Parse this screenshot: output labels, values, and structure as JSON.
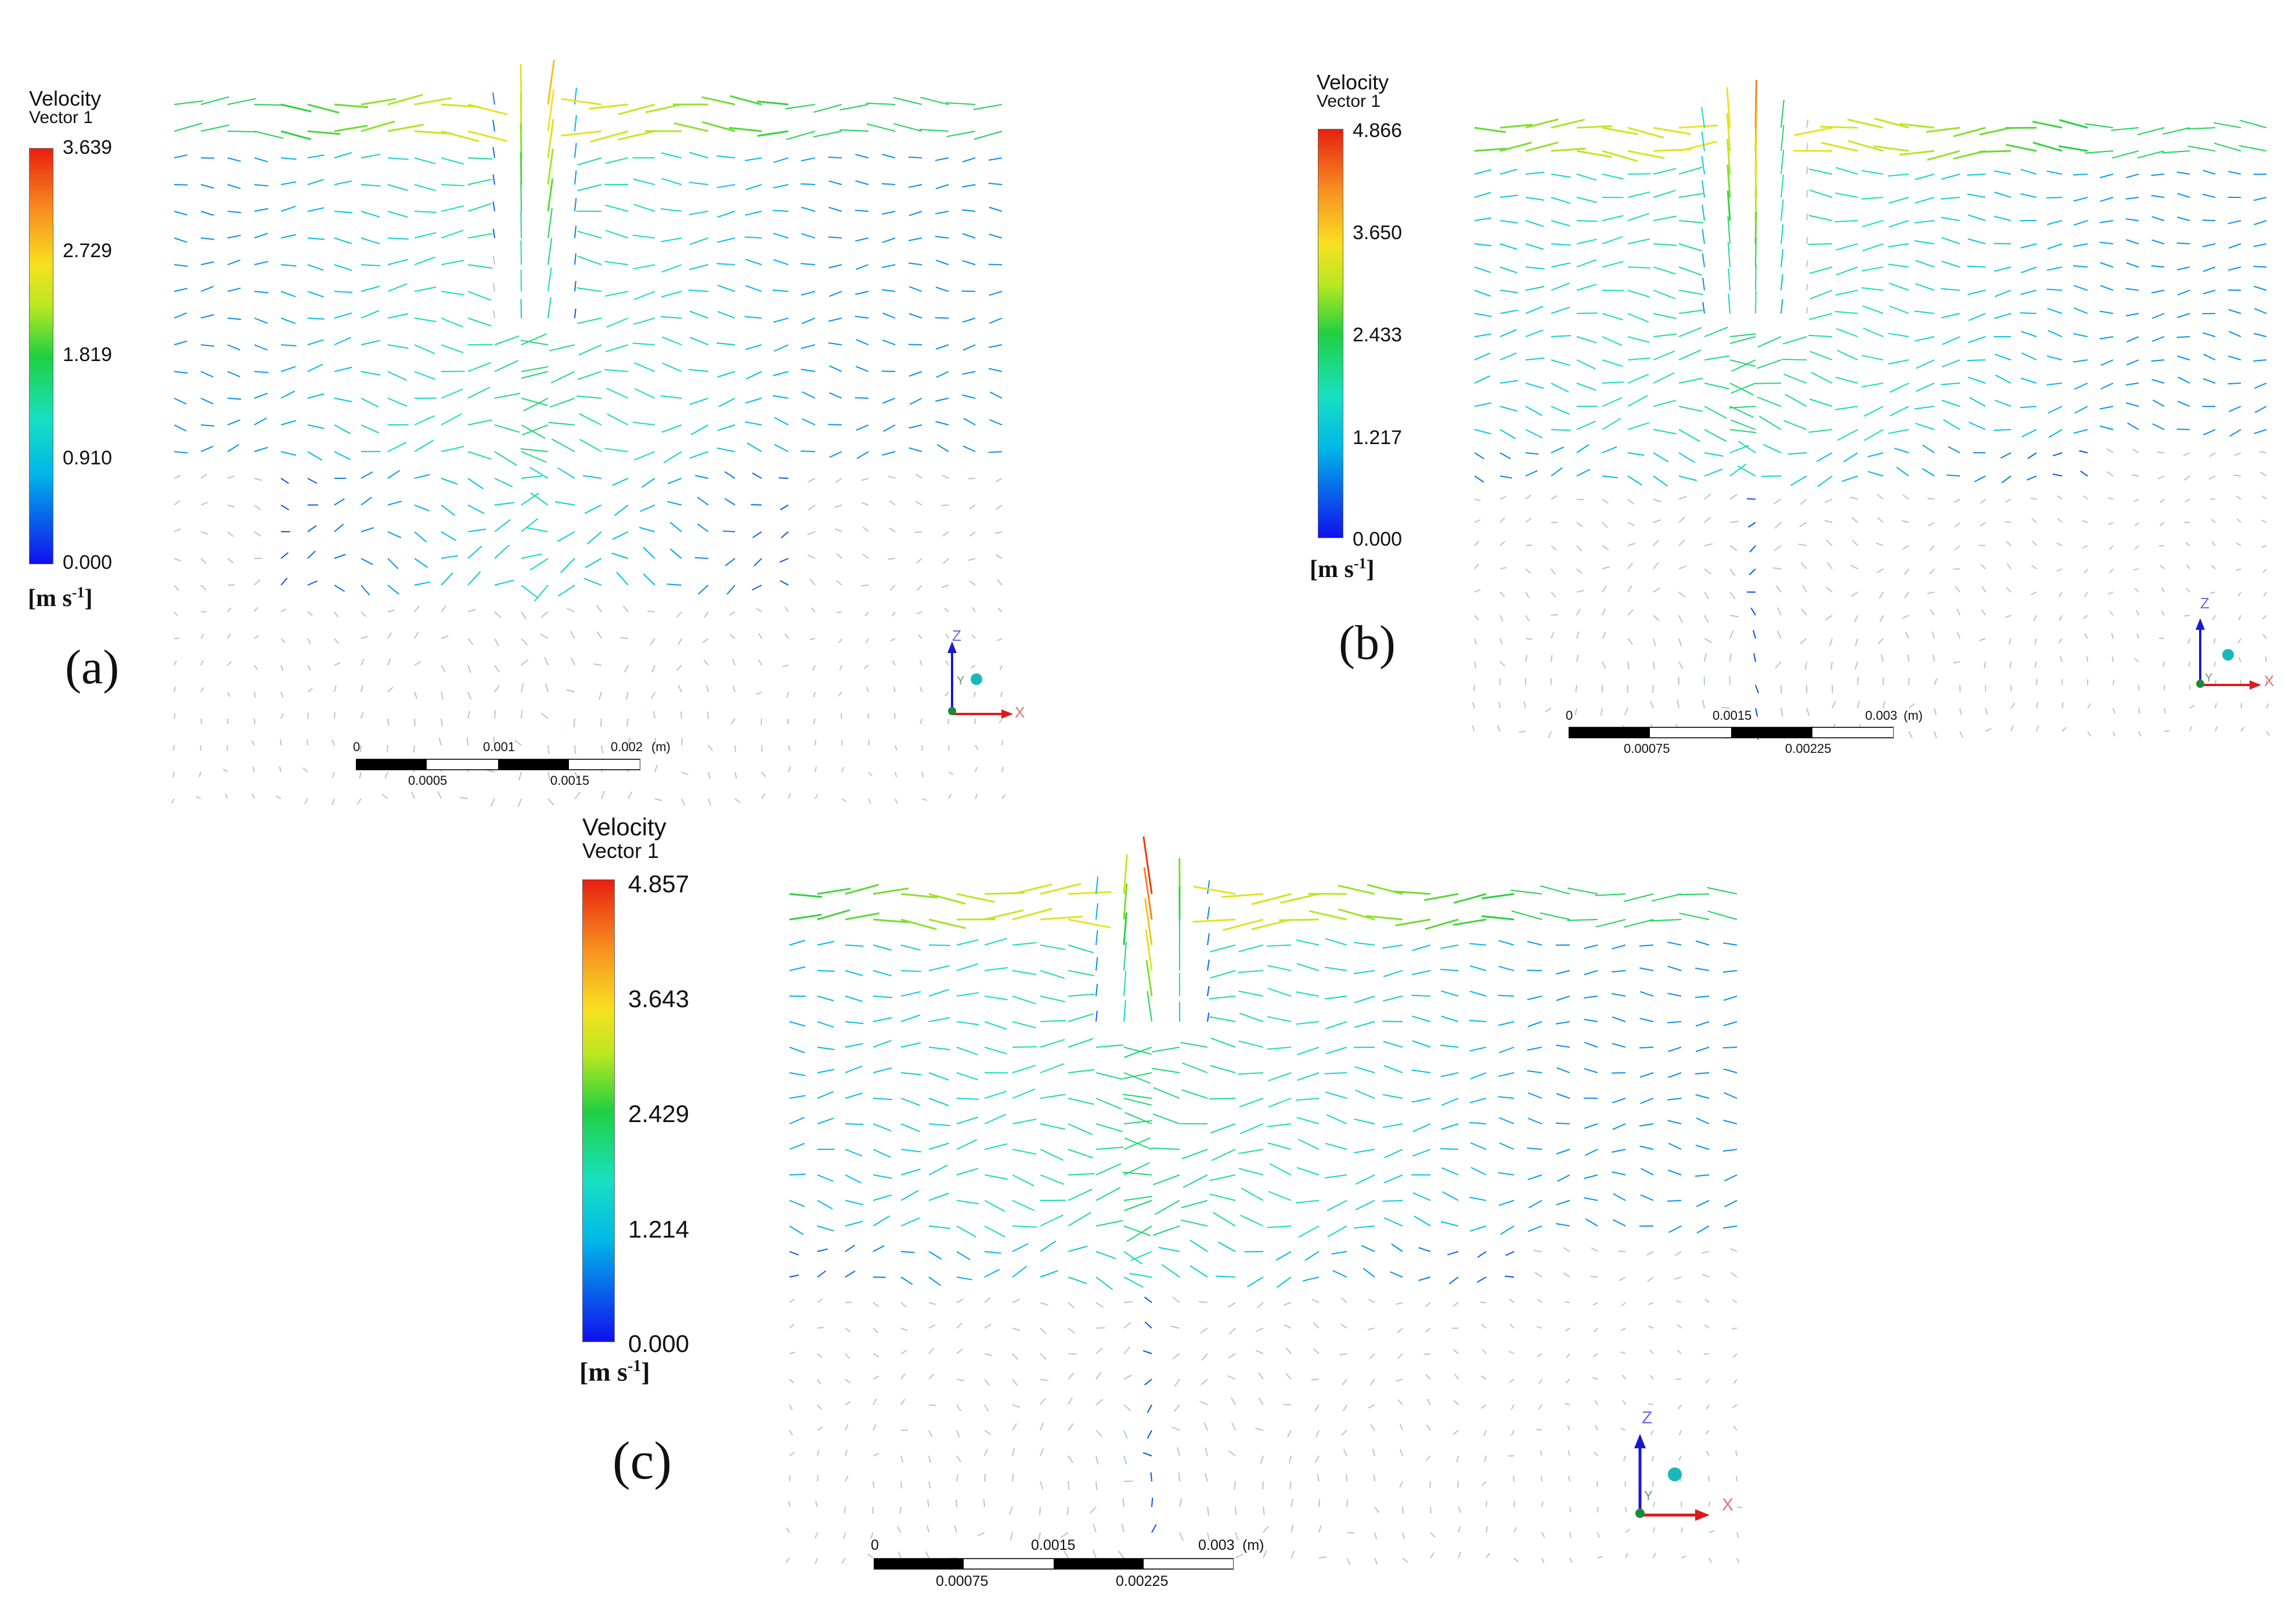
{
  "panels": [
    {
      "id": "a",
      "legend": {
        "title_line1": "Velocity",
        "title_line2": "Vector 1",
        "ticks": [
          "3.639",
          "2.729",
          "1.819",
          "0.910",
          "0.000"
        ],
        "unit": "[m s-1]",
        "unit_base": "[m s",
        "unit_exp": "-1",
        "unit_close": "]"
      },
      "label": "(a)",
      "scale": {
        "top_labels": [
          "0",
          "0.001",
          "0.002",
          "(m)"
        ],
        "bottom_labels": [
          "0.0005",
          "0.0015"
        ]
      },
      "axes": {
        "z": "Z",
        "x": "X",
        "y": "Y"
      }
    },
    {
      "id": "b",
      "legend": {
        "title_line1": "Velocity",
        "title_line2": "Vector 1",
        "ticks": [
          "4.866",
          "3.650",
          "2.433",
          "1.217",
          "0.000"
        ],
        "unit": "[m s-1]",
        "unit_base": "[m s",
        "unit_exp": "-1",
        "unit_close": "]"
      },
      "label": "(b)",
      "scale": {
        "top_labels": [
          "0",
          "0.0015",
          "0.003",
          "(m)"
        ],
        "bottom_labels": [
          "0.00075",
          "0.00225"
        ]
      },
      "axes": {
        "z": "Z",
        "x": "X",
        "y": "Y"
      }
    },
    {
      "id": "c",
      "legend": {
        "title_line1": "Velocity",
        "title_line2": "Vector 1",
        "ticks": [
          "4.857",
          "3.643",
          "2.429",
          "1.214",
          "0.000"
        ],
        "unit": "[m s-1]",
        "unit_base": "[m s",
        "unit_exp": "-1",
        "unit_close": "]"
      },
      "label": "(c)",
      "scale": {
        "top_labels": [
          "0",
          "0.0015",
          "0.003",
          "(m)"
        ],
        "bottom_labels": [
          "0.00075",
          "0.00225"
        ]
      },
      "axes": {
        "z": "Z",
        "x": "X",
        "y": "Y"
      }
    }
  ]
}
